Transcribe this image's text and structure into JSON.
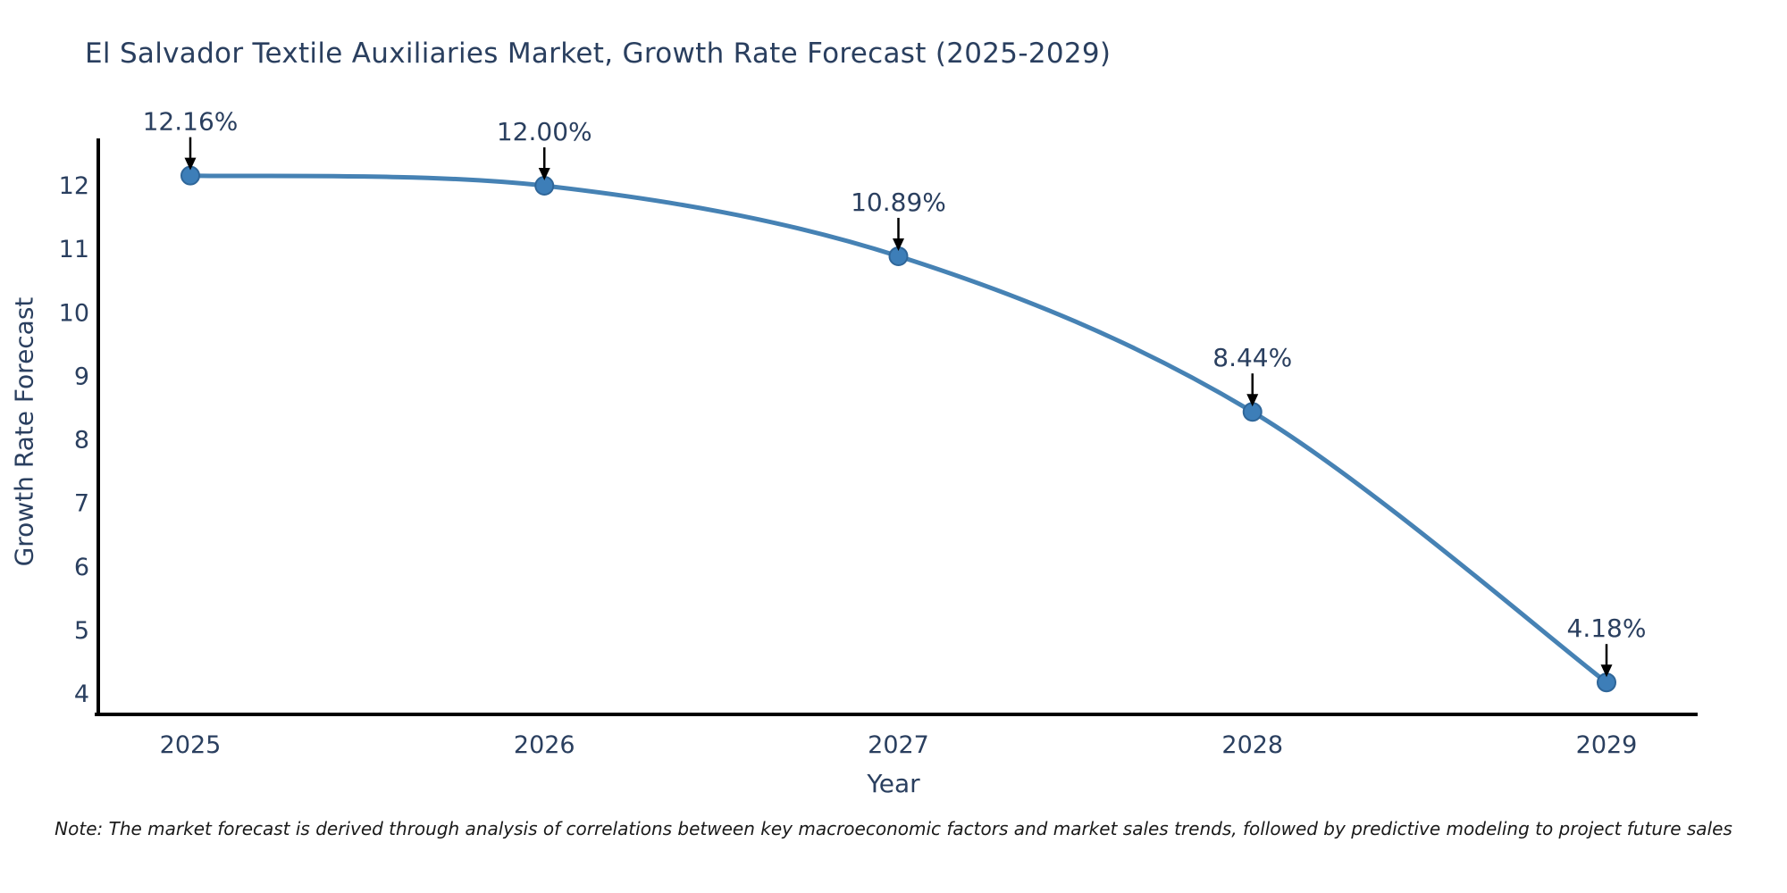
{
  "figure": {
    "note": "Note: The market forecast is derived through analysis of correlations between key macroeconomic factors and market sales trends, followed by predictive modeling to project future sales"
  },
  "chart_data": {
    "type": "line",
    "title": "El Salvador Textile Auxiliaries Market, Growth Rate Forecast (2025-2029)",
    "xlabel": "Year",
    "ylabel": "Growth Rate Forecast",
    "x": [
      2025,
      2026,
      2027,
      2028,
      2029
    ],
    "series": [
      {
        "name": "Growth Rate Forecast",
        "values": [
          12.16,
          12.0,
          10.89,
          8.44,
          4.18
        ]
      }
    ],
    "point_labels": [
      "12.16%",
      "12.00%",
      "10.89%",
      "8.44%",
      "4.18%"
    ],
    "yticks": [
      4,
      5,
      6,
      7,
      8,
      9,
      10,
      11,
      12
    ],
    "ylim": [
      3.7,
      12.75
    ],
    "line_shape": "spline",
    "grid": false,
    "legend": "none",
    "annotations_have_arrows": true,
    "colors": {
      "line": "#4682b4",
      "marker_fill": "#3d7eb8",
      "marker_stroke": "#2f6699",
      "arrow": "#000000",
      "axis": "#000000",
      "text": "#2a3f5f",
      "note_text": "#1a1a1a"
    }
  }
}
